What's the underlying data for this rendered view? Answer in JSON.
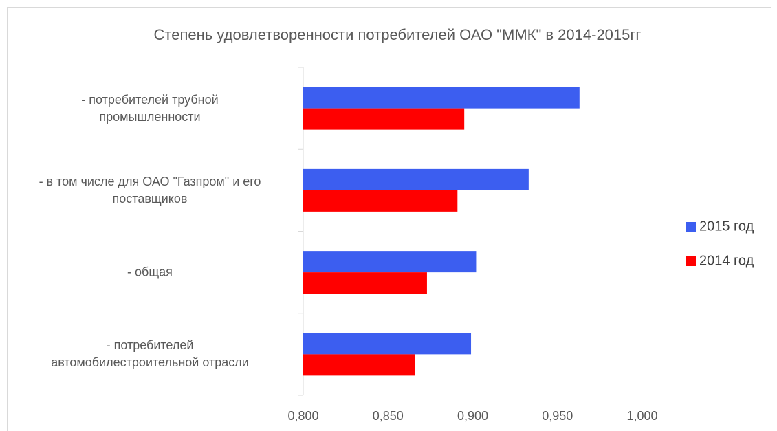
{
  "chart_data": {
    "type": "bar",
    "orientation": "horizontal",
    "title": "Степень удовлетворенности потребителей ОАО \"ММК\" в 2014-2015гг",
    "categories": [
      "- потребителей трубной\nпромышленности",
      "- в том числе для ОАО \"Газпром\" и его\nпоставщиков",
      "- общая",
      "- потребителей\nавтомобилестроительной отрасли"
    ],
    "series": [
      {
        "name": "2015 год",
        "color": "#3c5ef0",
        "values": [
          0.963,
          0.933,
          0.902,
          0.899
        ]
      },
      {
        "name": "2014 год",
        "color": "#ff0000",
        "values": [
          0.895,
          0.891,
          0.873,
          0.866
        ]
      }
    ],
    "xlim": [
      0.8,
      1.0
    ],
    "xticks": [
      {
        "value": 0.8,
        "label": "0,800"
      },
      {
        "value": 0.85,
        "label": "0,850"
      },
      {
        "value": 0.9,
        "label": "0,900"
      },
      {
        "value": 0.95,
        "label": "0,950"
      },
      {
        "value": 1.0,
        "label": "1,000"
      }
    ],
    "grid": false,
    "legend": "right"
  }
}
